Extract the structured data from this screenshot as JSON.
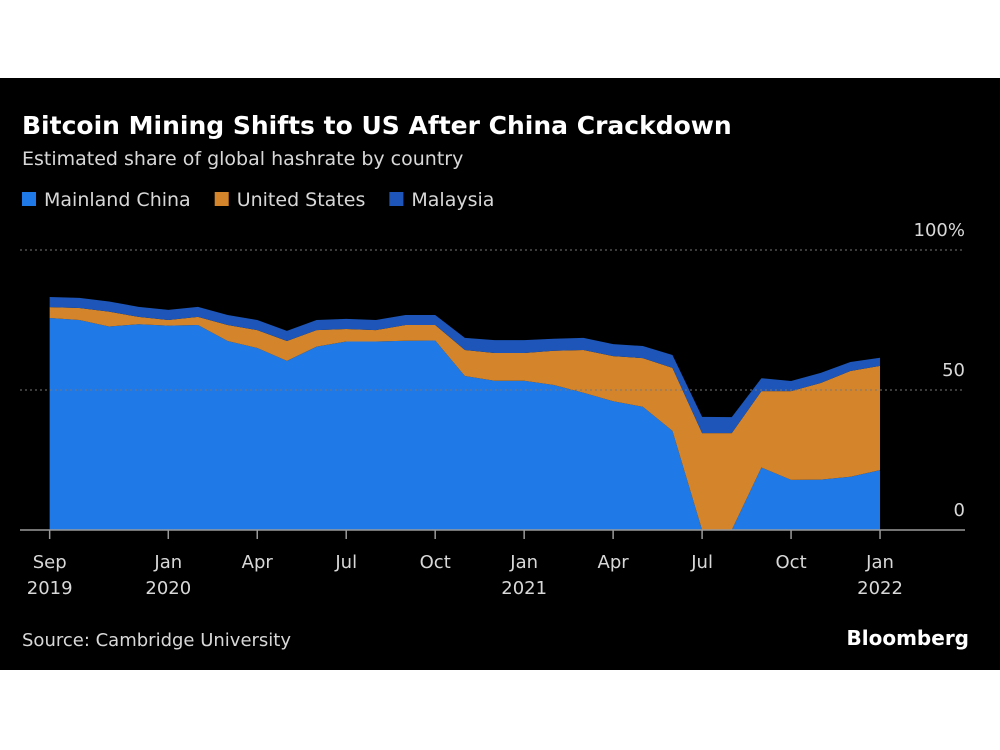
{
  "chart_data": {
    "type": "stacked-area",
    "title": "Bitcoin Mining Shifts to US After China Crackdown",
    "subtitle": "Estimated share of global hashrate by country",
    "source": "Source: Cambridge University",
    "brand": "Bloomberg",
    "x": [
      "2019-09",
      "2019-10",
      "2019-11",
      "2019-12",
      "2020-01",
      "2020-02",
      "2020-03",
      "2020-04",
      "2020-05",
      "2020-06",
      "2020-07",
      "2020-08",
      "2020-09",
      "2020-10",
      "2020-11",
      "2020-12",
      "2021-01",
      "2021-02",
      "2021-03",
      "2021-04",
      "2021-05",
      "2021-06",
      "2021-07",
      "2021-08",
      "2021-09",
      "2021-10",
      "2021-11",
      "2021-12",
      "2022-01"
    ],
    "series": [
      {
        "name": "Mainland China",
        "color": "#1f7ae8",
        "values": [
          75.7,
          75.0,
          72.7,
          73.5,
          73.0,
          73.2,
          67.5,
          65.0,
          60.4,
          65.5,
          67.3,
          67.3,
          67.6,
          67.7,
          55.0,
          53.3,
          53.3,
          51.8,
          49.0,
          46.0,
          44.0,
          35.4,
          0,
          0,
          22.3,
          17.9,
          18.0,
          19.0,
          21.4
        ]
      },
      {
        "name": "United States",
        "color": "#d4842a",
        "values": [
          3.9,
          4.3,
          5.3,
          2.6,
          2.0,
          2.9,
          5.7,
          6.4,
          7.1,
          5.9,
          4.5,
          4.1,
          5.6,
          5.5,
          9.3,
          9.9,
          9.9,
          12.2,
          15.3,
          16.1,
          17.4,
          22.5,
          34.6,
          34.6,
          27.3,
          31.7,
          34.5,
          37.8,
          37.2
        ]
      },
      {
        "name": "Malaysia",
        "color": "#1d56b8",
        "values": [
          3.6,
          3.6,
          3.6,
          3.6,
          3.6,
          3.6,
          3.6,
          3.6,
          3.6,
          3.6,
          3.6,
          3.6,
          3.6,
          3.6,
          4.3,
          4.6,
          4.6,
          4.3,
          4.3,
          4.3,
          4.3,
          4.6,
          5.8,
          5.7,
          4.6,
          3.6,
          3.6,
          3.2,
          2.9
        ]
      }
    ],
    "xlim": [
      "2019-08",
      "2022-04"
    ],
    "xticks": [
      {
        "value": "2019-09",
        "label": "Sep",
        "year": "2019"
      },
      {
        "value": "2020-01",
        "label": "Jan",
        "year": "2020"
      },
      {
        "value": "2020-04",
        "label": "Apr"
      },
      {
        "value": "2020-07",
        "label": "Jul"
      },
      {
        "value": "2020-10",
        "label": "Oct"
      },
      {
        "value": "2021-01",
        "label": "Jan",
        "year": "2021"
      },
      {
        "value": "2021-04",
        "label": "Apr"
      },
      {
        "value": "2021-07",
        "label": "Jul"
      },
      {
        "value": "2021-10",
        "label": "Oct"
      },
      {
        "value": "2022-01",
        "label": "Jan",
        "year": "2022"
      }
    ],
    "ylim": [
      0,
      100
    ],
    "yticks": [
      0,
      50,
      {
        "value": 100,
        "label": "100%"
      }
    ],
    "grid": true
  }
}
